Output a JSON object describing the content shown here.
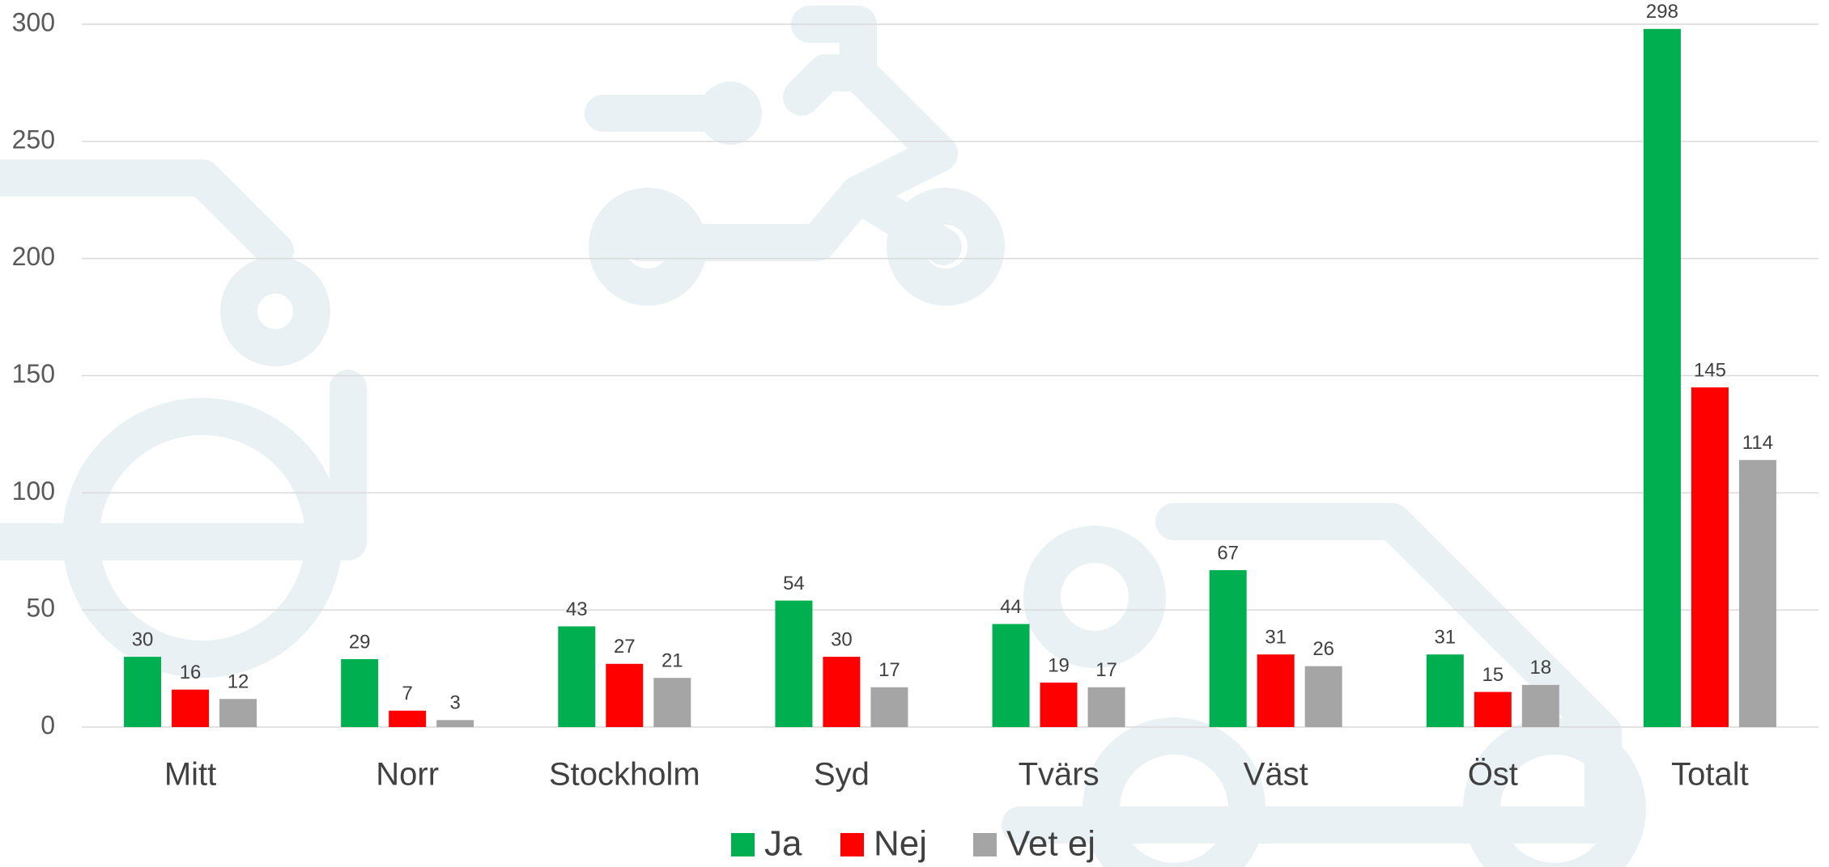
{
  "chart_data": {
    "type": "bar",
    "categories": [
      "Mitt",
      "Norr",
      "Stockholm",
      "Syd",
      "Tvärs",
      "Väst",
      "Öst",
      "Totalt"
    ],
    "series": [
      {
        "name": "Ja",
        "color": "#00b050",
        "values": [
          30,
          29,
          43,
          54,
          44,
          67,
          31,
          298
        ]
      },
      {
        "name": "Nej",
        "color": "#ff0000",
        "values": [
          16,
          7,
          27,
          30,
          19,
          31,
          15,
          145
        ]
      },
      {
        "name": "Vet ej",
        "color": "#a5a5a5",
        "values": [
          12,
          3,
          21,
          17,
          17,
          26,
          18,
          114
        ]
      }
    ],
    "ylim": [
      0,
      300
    ],
    "yticks": [
      0,
      50,
      100,
      150,
      200,
      250,
      300
    ],
    "grid": true,
    "legend": "bottom"
  }
}
